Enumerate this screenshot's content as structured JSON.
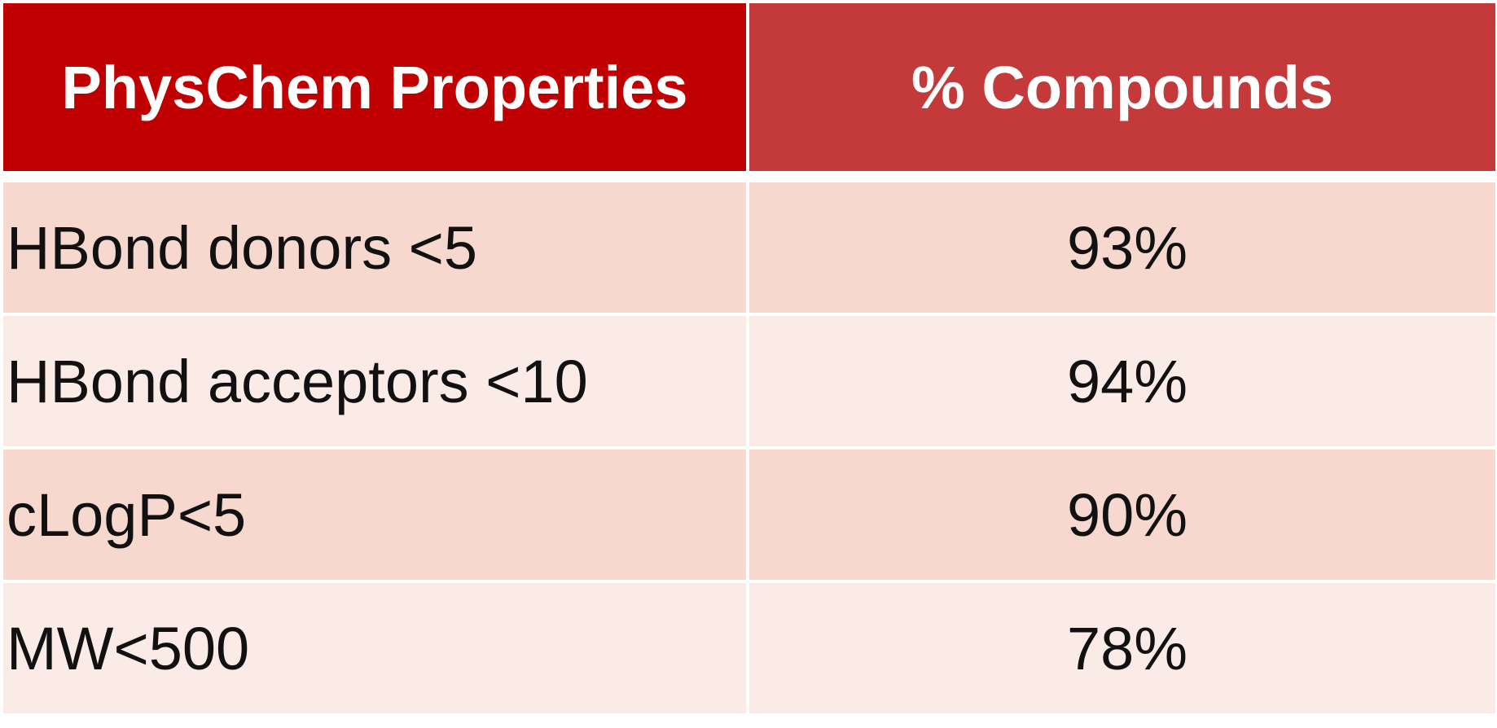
{
  "table": {
    "headers": [
      "PhysChem Properties",
      "% Compounds"
    ],
    "rows": [
      {
        "property": "HBond donors <5",
        "percent": "93%"
      },
      {
        "property": "HBond acceptors <10",
        "percent": "94%"
      },
      {
        "property": "cLogP<5",
        "percent": "90%"
      },
      {
        "property": "MW<500",
        "percent": "78%"
      }
    ]
  },
  "colors": {
    "header_left_bg": "#c00000",
    "header_right_bg": "#c43a3a",
    "row_dark_bg": "#f6d8ce",
    "row_light_bg": "#fbebe7",
    "header_text": "#ffffff",
    "body_text": "#111111"
  }
}
